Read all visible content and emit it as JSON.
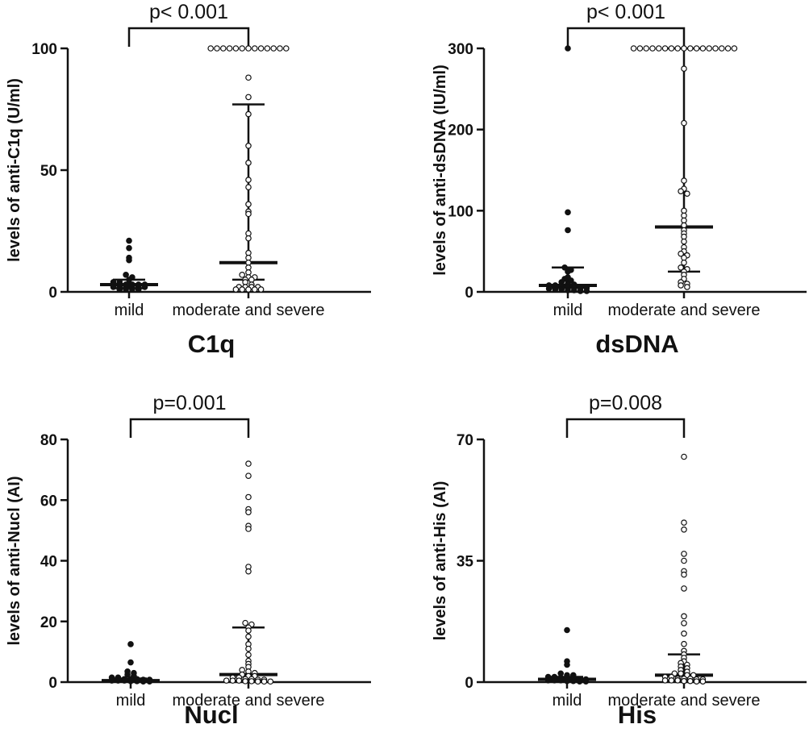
{
  "colors": {
    "ink": "#111111",
    "mild_marker_fill": "#111111",
    "severe_marker_fill": "#ffffff"
  },
  "chart_data": [
    {
      "type": "scatter",
      "title": "C1q",
      "ylabel": "levels of anti-C1q (U/ml)",
      "categories": [
        "mild",
        "moderate and severe"
      ],
      "ylim": [
        0,
        100
      ],
      "yticks": [
        "0",
        "50",
        "100"
      ],
      "significance": "p< 0.001",
      "grid": false,
      "series": [
        {
          "values": [
            21,
            18,
            14,
            13,
            7,
            6,
            5,
            4,
            4,
            3,
            3,
            3,
            3,
            2,
            2,
            2,
            2,
            2,
            2,
            1,
            1,
            1,
            1
          ],
          "median": 3,
          "q1": 1.5,
          "q3": 5
        },
        {
          "values": [
            100,
            100,
            100,
            100,
            100,
            100,
            100,
            100,
            100,
            100,
            100,
            100,
            100,
            88,
            80,
            73,
            60,
            53,
            46,
            43,
            36,
            33,
            32,
            24,
            22,
            16,
            14,
            12,
            10,
            8,
            7,
            6,
            6,
            5,
            5,
            4,
            3,
            2,
            2,
            2,
            2,
            1,
            1,
            1,
            1,
            1
          ],
          "median": 12,
          "q1": 5,
          "q3": 77
        }
      ]
    },
    {
      "type": "scatter",
      "title": "dsDNA",
      "ylabel": "levels of anti-dsDNA (IU/ml)",
      "categories": [
        "mild",
        "moderate and severe"
      ],
      "ylim": [
        0,
        300
      ],
      "yticks": [
        "0",
        "100",
        "200",
        "300"
      ],
      "significance": "p< 0.001",
      "grid": false,
      "series": [
        {
          "values": [
            300,
            98,
            76,
            30,
            27,
            25,
            18,
            16,
            14,
            12,
            10,
            9,
            8,
            8,
            7,
            6,
            6,
            5,
            5,
            4,
            3,
            3,
            2,
            2,
            1,
            1
          ],
          "median": 8,
          "q1": 5,
          "q3": 30
        },
        {
          "values": [
            300,
            300,
            300,
            300,
            300,
            300,
            300,
            300,
            300,
            300,
            300,
            300,
            300,
            300,
            300,
            300,
            300,
            275,
            208,
            137,
            127,
            124,
            121,
            100,
            94,
            88,
            82,
            76,
            72,
            68,
            62,
            55,
            50,
            47,
            45,
            42,
            36,
            30,
            28,
            25,
            21,
            16,
            12,
            10,
            8,
            6
          ],
          "median": 80,
          "q1": 25,
          "q3": 300
        }
      ]
    },
    {
      "type": "scatter",
      "title": "Nucl",
      "ylabel": "levels of anti-Nucl (AI)",
      "categories": [
        "mild",
        "moderate and severe"
      ],
      "ylim": [
        0,
        80
      ],
      "yticks": [
        "0",
        "20",
        "40",
        "60",
        "80"
      ],
      "significance": "p=0.001",
      "grid": false,
      "series": [
        {
          "values": [
            12.5,
            6.5,
            3.5,
            3.0,
            2.5,
            2.0,
            1.5,
            1.5,
            1.0,
            1.0,
            1.0,
            0.8,
            0.8,
            0.5,
            0.5,
            0.5,
            0.3,
            0.3,
            0.2,
            0.2
          ],
          "median": 0.5,
          "q1": 0.3,
          "q3": 1.2
        },
        {
          "values": [
            72,
            68,
            61,
            57,
            56,
            51.5,
            50.5,
            38,
            36.5,
            19.5,
            19,
            18,
            17,
            15,
            12.5,
            11,
            9,
            7,
            6,
            5,
            4,
            3.5,
            3,
            2.5,
            2,
            2,
            1.5,
            1.5,
            1,
            1,
            0.8,
            0.8,
            0.5,
            0.5,
            0.5,
            0.3,
            0.3,
            0.2,
            0.2,
            0.2
          ],
          "median": 2.5,
          "q1": 0.5,
          "q3": 18
        }
      ]
    },
    {
      "type": "scatter",
      "title": "His",
      "ylabel": "levels of anti-His (AI)",
      "categories": [
        "mild",
        "moderate and severe"
      ],
      "ylim": [
        0,
        70
      ],
      "yticks": [
        "0",
        "35",
        "70"
      ],
      "significance": "p=0.008",
      "grid": false,
      "series": [
        {
          "values": [
            15,
            6,
            5,
            2.5,
            2,
            2,
            1.5,
            1.5,
            1.2,
            1,
            1,
            0.8,
            0.8,
            0.5,
            0.5,
            0.5,
            0.3,
            0.3,
            0.2,
            0.2
          ],
          "median": 0.8,
          "q1": 0.3,
          "q3": 1.5
        },
        {
          "values": [
            65,
            46,
            44,
            37,
            35,
            32,
            31,
            27,
            19,
            17,
            14,
            11,
            9,
            8,
            7,
            6,
            5.5,
            5,
            4.5,
            4,
            3.5,
            3,
            2.5,
            2.5,
            2,
            2,
            1.5,
            1.5,
            1,
            1,
            1,
            0.8,
            0.8,
            0.5,
            0.5,
            0.5,
            0.3,
            0.3,
            0.2,
            0.2
          ],
          "median": 2,
          "q1": 0.5,
          "q3": 8
        }
      ]
    }
  ]
}
